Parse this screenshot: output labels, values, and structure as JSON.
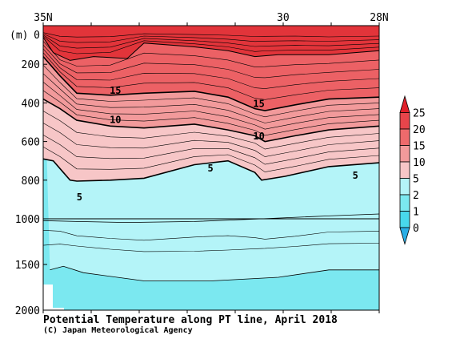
{
  "chart_data": {
    "type": "contour-section",
    "title": "Potential Temperature along PT line, April 2018",
    "credit": "(C) Japan Meteorological Agency",
    "y_unit_label": "(m)",
    "x_ticks": [
      "35N",
      "30",
      "28N"
    ],
    "y_ticks": [
      "0",
      "200",
      "400",
      "600",
      "800",
      "1000",
      "1500",
      "2000"
    ],
    "y_range": [
      0,
      2000
    ],
    "y_axis_break": 1000,
    "contour_labels": [
      "15",
      "15",
      "10",
      "10",
      "5",
      "5",
      "5"
    ],
    "colorbar": {
      "labels": [
        "25",
        "20",
        "15",
        "10",
        "5",
        "2",
        "1",
        "0"
      ],
      "colors": [
        "#e0202a",
        "#e8454b",
        "#ee6a6c",
        "#f29a9b",
        "#f7c6c7",
        "#b4f4f8",
        "#7be8f0",
        "#48d8ec",
        "#2aaee6"
      ]
    },
    "palette": {
      "warm_deep": "#e2343a",
      "warm_mid": "#ec6165",
      "warm_light": "#f29a9b",
      "warm_pale": "#f7c6c7",
      "cool_light": "#b4f4f8",
      "cool_mid": "#7be8f0"
    }
  }
}
